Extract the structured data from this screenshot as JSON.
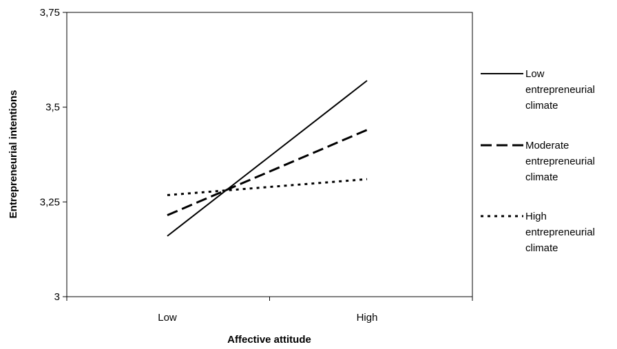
{
  "chart_data": {
    "type": "line",
    "title": "",
    "xlabel": "Affective attitude",
    "ylabel": "Entrepreneurial intentions",
    "categories": [
      "Low",
      "High"
    ],
    "ylim": [
      3,
      3.75
    ],
    "y_ticks": [
      3,
      3.25,
      3.5,
      3.75
    ],
    "y_tick_labels": [
      "3",
      "3,25",
      "3,5",
      "3,75"
    ],
    "grid": false,
    "legend_position": "right",
    "series": [
      {
        "name": "Low entrepreneurial climate",
        "legend_lines": [
          "Low",
          "entrepreneurial",
          "climate"
        ],
        "values": [
          3.16,
          3.57
        ],
        "line_style": "solid",
        "color": "#000000"
      },
      {
        "name": "Moderate entrepreneurial climate",
        "legend_lines": [
          "Moderate",
          "entrepreneurial",
          "climate"
        ],
        "values": [
          3.215,
          3.44
        ],
        "line_style": "long-dash",
        "color": "#000000"
      },
      {
        "name": "High entrepreneurial climate",
        "legend_lines": [
          "High",
          "entrepreneurial",
          "climate"
        ],
        "values": [
          3.268,
          3.31
        ],
        "line_style": "dotted",
        "color": "#000000"
      }
    ]
  }
}
